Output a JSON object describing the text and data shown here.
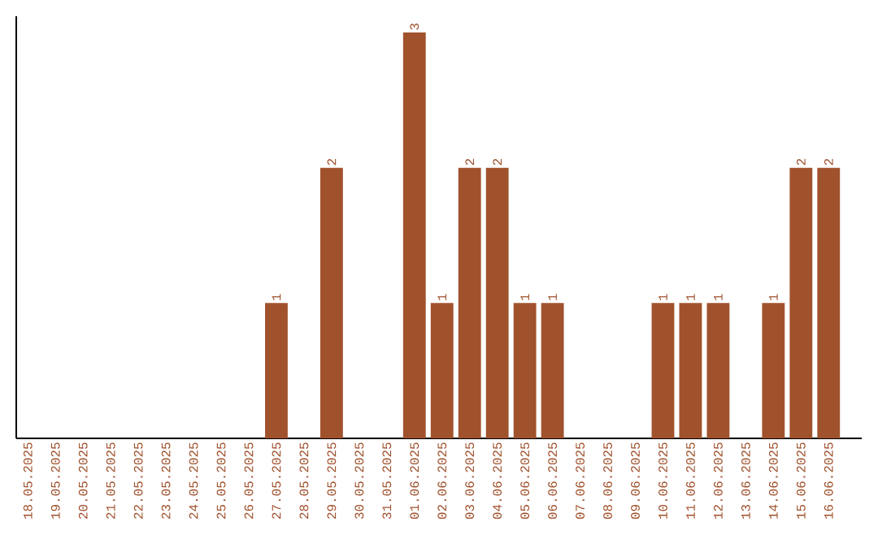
{
  "chart_data": {
    "type": "bar",
    "categories": [
      "18.05.2025",
      "19.05.2025",
      "20.05.2025",
      "21.05.2025",
      "22.05.2025",
      "23.05.2025",
      "24.05.2025",
      "25.05.2025",
      "26.05.2025",
      "27.05.2025",
      "28.05.2025",
      "29.05.2025",
      "30.05.2025",
      "31.05.2025",
      "01.06.2025",
      "02.06.2025",
      "03.06.2025",
      "04.06.2025",
      "05.06.2025",
      "06.06.2025",
      "07.06.2025",
      "08.06.2025",
      "09.06.2025",
      "10.06.2025",
      "11.06.2025",
      "12.06.2025",
      "13.06.2025",
      "14.06.2025",
      "15.06.2025",
      "16.06.2025"
    ],
    "values": [
      0,
      0,
      0,
      0,
      0,
      0,
      0,
      0,
      0,
      1,
      0,
      2,
      0,
      0,
      3,
      1,
      2,
      2,
      1,
      1,
      0,
      0,
      0,
      1,
      1,
      1,
      0,
      1,
      2,
      2
    ],
    "value_labels": [
      null,
      null,
      null,
      null,
      null,
      null,
      null,
      null,
      null,
      "1",
      null,
      "2",
      null,
      null,
      "3",
      "1",
      "2",
      "2",
      "1",
      "1",
      null,
      null,
      null,
      "1",
      "1",
      "1",
      null,
      "1",
      "2",
      "2"
    ],
    "color": "#a0522d",
    "grid": false
  }
}
